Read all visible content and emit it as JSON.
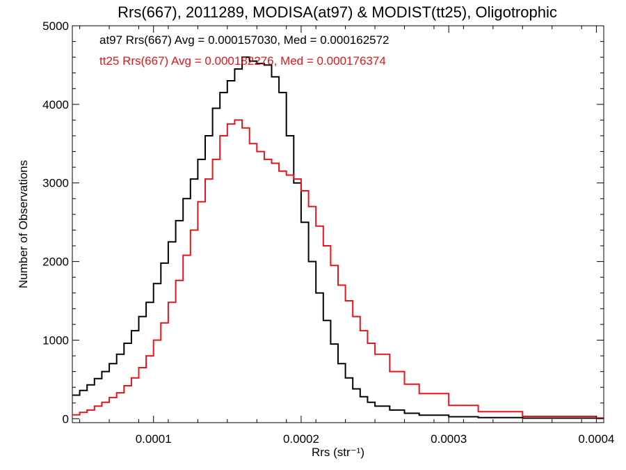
{
  "chart_data": {
    "type": "line",
    "title": "Rrs(667), 2011289, MODISA(at97) & MODIST(tt25), Oligotrophic",
    "xlabel": "Rrs (str⁻¹)",
    "ylabel": "Number of Observations",
    "xlim": [
      4.5e-05,
      0.000405
    ],
    "ylim": [
      -50,
      5000
    ],
    "x_ticks": [
      {
        "value": 0.0001,
        "label": "0.0001"
      },
      {
        "value": 0.0002,
        "label": "0.0002"
      },
      {
        "value": 0.0003,
        "label": "0.0003"
      },
      {
        "value": 0.0004,
        "label": "0.0004"
      }
    ],
    "y_ticks": [
      {
        "value": 0,
        "label": "0"
      },
      {
        "value": 1000,
        "label": "1000"
      },
      {
        "value": 2000,
        "label": "2000"
      },
      {
        "value": 3000,
        "label": "3000"
      },
      {
        "value": 4000,
        "label": "4000"
      },
      {
        "value": 5000,
        "label": "5000"
      }
    ],
    "annotations": [
      {
        "text": "at97 Rrs(667) Avg = 0.000157030, Med = 0.000162572",
        "color": "#000000"
      },
      {
        "text": "tt25 Rrs(667) Avg = 0.000182276, Med = 0.000176374",
        "color": "#e8141c"
      }
    ],
    "series": [
      {
        "color": "#000000",
        "style": "step",
        "x": [
          4.5e-05,
          5e-05,
          5.5e-05,
          6e-05,
          6.5e-05,
          7e-05,
          7.5e-05,
          8e-05,
          8.5e-05,
          9e-05,
          9.5e-05,
          0.0001,
          0.000105,
          0.00011,
          0.000115,
          0.00012,
          0.000125,
          0.00013,
          0.000135,
          0.00014,
          0.000145,
          0.00015,
          0.000155,
          0.00016,
          0.000165,
          0.00017,
          0.000175,
          0.00018,
          0.000185,
          0.00019,
          0.000195,
          0.0002,
          0.000205,
          0.00021,
          0.000215,
          0.00022,
          0.000225,
          0.00023,
          0.000235,
          0.00024,
          0.000245,
          0.00025,
          0.00026,
          0.00027,
          0.00028,
          0.0003,
          0.00032,
          0.00035,
          0.0004
        ],
        "y": [
          300,
          360,
          430,
          510,
          600,
          700,
          820,
          960,
          1120,
          1300,
          1480,
          1720,
          1980,
          2250,
          2520,
          2800,
          3050,
          3300,
          3600,
          3950,
          4150,
          4300,
          4450,
          4600,
          4550,
          4520,
          4500,
          4350,
          4150,
          3600,
          3000,
          2500,
          2000,
          1600,
          1250,
          950,
          700,
          520,
          380,
          280,
          210,
          160,
          110,
          70,
          45,
          25,
          15,
          8,
          5
        ]
      },
      {
        "color": "#e8141c",
        "style": "step",
        "x": [
          4.5e-05,
          5e-05,
          5.5e-05,
          6e-05,
          6.5e-05,
          7e-05,
          7.5e-05,
          8e-05,
          8.5e-05,
          9e-05,
          9.5e-05,
          0.0001,
          0.000105,
          0.00011,
          0.000115,
          0.00012,
          0.000125,
          0.00013,
          0.000135,
          0.00014,
          0.000145,
          0.00015,
          0.000155,
          0.00016,
          0.000165,
          0.00017,
          0.000175,
          0.00018,
          0.000185,
          0.00019,
          0.000195,
          0.0002,
          0.000205,
          0.00021,
          0.000215,
          0.00022,
          0.000225,
          0.00023,
          0.000235,
          0.00024,
          0.000245,
          0.00025,
          0.00026,
          0.00027,
          0.00028,
          0.0003,
          0.00032,
          0.00035,
          0.0004
        ],
        "y": [
          50,
          80,
          110,
          160,
          210,
          270,
          330,
          420,
          520,
          650,
          800,
          1000,
          1220,
          1480,
          1760,
          2080,
          2400,
          2760,
          3050,
          3300,
          3600,
          3750,
          3800,
          3700,
          3500,
          3400,
          3300,
          3250,
          3150,
          3100,
          3050,
          2900,
          2700,
          2450,
          2200,
          1950,
          1700,
          1500,
          1300,
          1120,
          960,
          820,
          600,
          440,
          320,
          170,
          90,
          30,
          10
        ]
      }
    ]
  }
}
